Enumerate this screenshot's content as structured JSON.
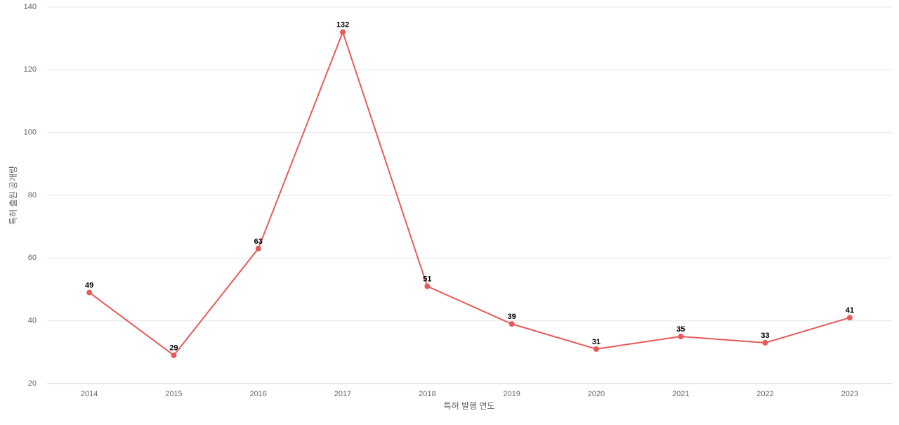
{
  "chart_data": {
    "type": "line",
    "x_label": "특허 발행 연도",
    "y_label": "특허 출원 공개량",
    "categories": [
      "2014",
      "2015",
      "2016",
      "2017",
      "2018",
      "2019",
      "2020",
      "2021",
      "2022",
      "2023"
    ],
    "series": [
      {
        "name": "특허 출원 공개량",
        "color": "#e85a5a",
        "values": [
          49,
          29,
          63,
          132,
          51,
          39,
          31,
          35,
          33,
          41
        ]
      }
    ],
    "ylim": [
      20,
      140
    ],
    "yticks": [
      20,
      40,
      60,
      80,
      100,
      120,
      140
    ],
    "grid": true
  }
}
